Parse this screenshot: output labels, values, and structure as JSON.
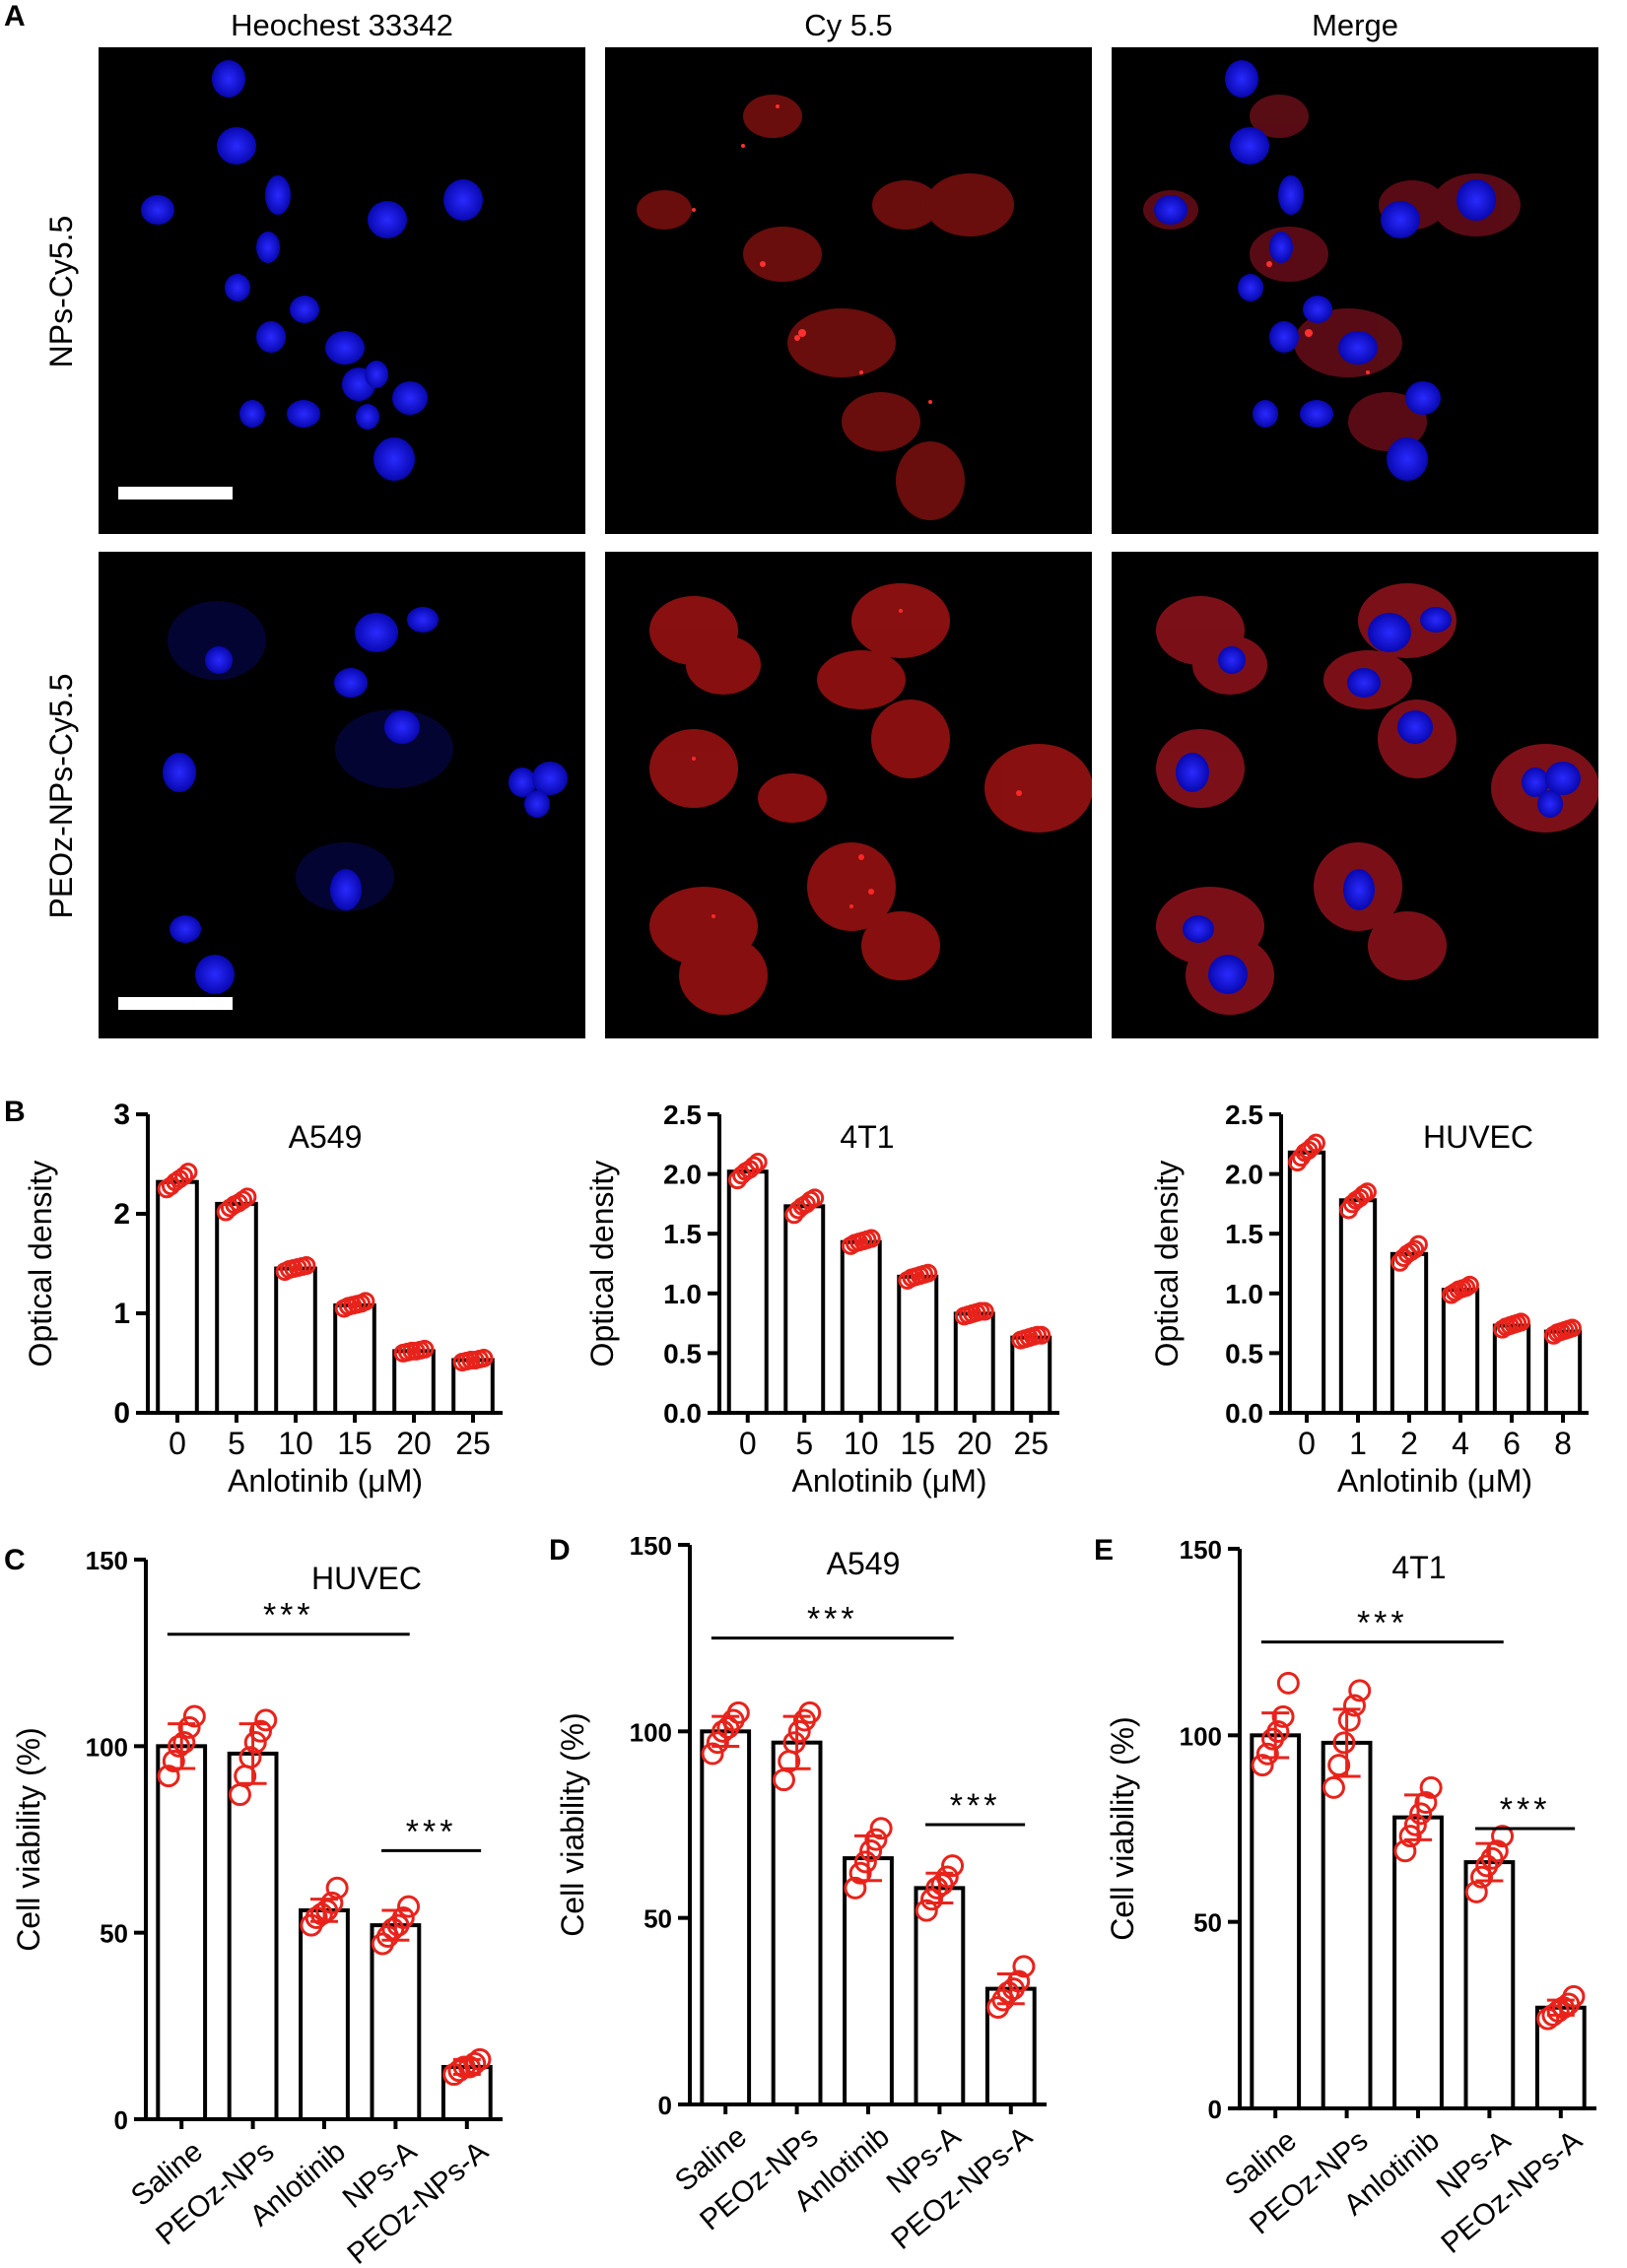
{
  "panels": {
    "A": "A",
    "B": "B",
    "C": "C",
    "D": "D",
    "E": "E"
  },
  "micrographs": {
    "columns": [
      "Heochest 33342",
      "Cy 5.5",
      "Merge"
    ],
    "rows": [
      "NPs-Cy5.5",
      "PEOz-NPs-Cy5.5"
    ],
    "colors": {
      "nucleus": "#1a1aff",
      "cy55": "#d21c1c",
      "background": "#000000",
      "scale_bar": "#ffffff"
    }
  },
  "chart_data": [
    {
      "id": "B1",
      "type": "bar",
      "title": "A549",
      "xlabel": "Anlotinib (μM)",
      "ylabel": "Optical density",
      "categories": [
        "0",
        "5",
        "10",
        "15",
        "20",
        "25"
      ],
      "values": [
        2.32,
        2.1,
        1.45,
        1.08,
        0.62,
        0.53
      ],
      "ylim": [
        0,
        3
      ],
      "yticks": [
        "0",
        "1",
        "2",
        "3"
      ],
      "ytick_values": [
        0,
        1,
        2,
        3
      ],
      "points": [
        [
          2.25,
          2.28,
          2.32,
          2.35,
          2.38,
          2.42
        ],
        [
          2.02,
          2.06,
          2.09,
          2.11,
          2.14,
          2.17
        ],
        [
          1.42,
          1.44,
          1.45,
          1.46,
          1.47,
          1.48
        ],
        [
          1.05,
          1.07,
          1.08,
          1.09,
          1.1,
          1.12
        ],
        [
          0.6,
          0.61,
          0.62,
          0.62,
          0.63,
          0.64
        ],
        [
          0.51,
          0.52,
          0.53,
          0.53,
          0.54,
          0.55
        ]
      ]
    },
    {
      "id": "B2",
      "type": "bar",
      "title": "4T1",
      "xlabel": "Anlotinib (μM)",
      "ylabel": "Optical density",
      "categories": [
        "0",
        "5",
        "10",
        "15",
        "20",
        "25"
      ],
      "values": [
        2.02,
        1.73,
        1.43,
        1.14,
        0.83,
        0.63
      ],
      "ylim": [
        0,
        2.5
      ],
      "yticks": [
        "0.0",
        "0.5",
        "1.0",
        "1.5",
        "2.0",
        "2.5"
      ],
      "ytick_values": [
        0,
        0.5,
        1,
        1.5,
        2,
        2.5
      ],
      "points": [
        [
          1.95,
          1.99,
          2.02,
          2.04,
          2.07,
          2.1
        ],
        [
          1.66,
          1.7,
          1.73,
          1.75,
          1.78,
          1.8
        ],
        [
          1.4,
          1.42,
          1.43,
          1.44,
          1.45,
          1.46
        ],
        [
          1.11,
          1.13,
          1.14,
          1.15,
          1.16,
          1.17
        ],
        [
          0.81,
          0.82,
          0.83,
          0.84,
          0.85,
          0.85
        ],
        [
          0.61,
          0.62,
          0.63,
          0.64,
          0.65,
          0.65
        ]
      ]
    },
    {
      "id": "B3",
      "type": "bar",
      "title": "HUVEC",
      "xlabel": "Anlotinib (μM)",
      "ylabel": "Optical density",
      "categories": [
        "0",
        "1",
        "2",
        "4",
        "6",
        "8"
      ],
      "values": [
        2.18,
        1.78,
        1.33,
        1.03,
        0.73,
        0.68
      ],
      "ylim": [
        0,
        2.5
      ],
      "yticks": [
        "0.0",
        "0.5",
        "1.0",
        "1.5",
        "2.0",
        "2.5"
      ],
      "ytick_values": [
        0,
        0.5,
        1,
        1.5,
        2,
        2.5
      ],
      "points": [
        [
          2.1,
          2.14,
          2.18,
          2.2,
          2.23,
          2.26
        ],
        [
          1.7,
          1.75,
          1.78,
          1.8,
          1.83,
          1.85
        ],
        [
          1.26,
          1.3,
          1.33,
          1.35,
          1.37,
          1.41
        ],
        [
          0.99,
          1.01,
          1.03,
          1.04,
          1.05,
          1.07
        ],
        [
          0.7,
          0.72,
          0.73,
          0.74,
          0.75,
          0.76
        ],
        [
          0.65,
          0.67,
          0.68,
          0.69,
          0.7,
          0.71
        ]
      ]
    },
    {
      "id": "C",
      "type": "bar",
      "title": "HUVEC",
      "xlabel": "",
      "ylabel": "Cell viability (%)",
      "categories": [
        "Saline",
        "PEOz-NPs",
        "Anlotinib",
        "NPs-A",
        "PEOz-NPs-A"
      ],
      "values": [
        100,
        98,
        56,
        52,
        14
      ],
      "errors": [
        6,
        8,
        3,
        4,
        2
      ],
      "ylim": [
        0,
        150
      ],
      "yticks": [
        "0",
        "50",
        "100",
        "150"
      ],
      "ytick_values": [
        0,
        50,
        100,
        150
      ],
      "points": [
        [
          92,
          96,
          100,
          101,
          105,
          108
        ],
        [
          87,
          92,
          97,
          101,
          104,
          107
        ],
        [
          52,
          54,
          55,
          56,
          58,
          62
        ],
        [
          47,
          49,
          51,
          52,
          54,
          57
        ],
        [
          12,
          13,
          14,
          14,
          15,
          16
        ]
      ],
      "significance": [
        {
          "from": 0,
          "to": 3,
          "label": "***",
          "level": 130
        },
        {
          "from": 3,
          "to": 4,
          "label": "***",
          "level": 72
        }
      ]
    },
    {
      "id": "D",
      "type": "bar",
      "title": "A549",
      "xlabel": "",
      "ylabel": "Cell viability (%)",
      "categories": [
        "Saline",
        "PEOz-NPs",
        "Anlotinib",
        "NPs-A",
        "PEOz-NPs-A"
      ],
      "values": [
        100,
        97,
        66,
        58,
        31
      ],
      "errors": [
        4,
        7,
        6,
        4,
        4
      ],
      "ylim": [
        0,
        150
      ],
      "yticks": [
        "0",
        "50",
        "100",
        "150"
      ],
      "ytick_values": [
        0,
        50,
        100,
        150
      ],
      "points": [
        [
          94,
          97,
          100,
          101,
          103,
          105
        ],
        [
          87,
          92,
          97,
          100,
          103,
          105
        ],
        [
          58,
          62,
          65,
          68,
          71,
          74
        ],
        [
          52,
          55,
          58,
          59,
          61,
          64
        ],
        [
          26,
          28,
          30,
          31,
          33,
          37
        ]
      ],
      "significance": [
        {
          "from": 0,
          "to": 3,
          "label": "***",
          "level": 125
        },
        {
          "from": 3,
          "to": 4,
          "label": "***",
          "level": 75
        }
      ]
    },
    {
      "id": "E",
      "type": "bar",
      "title": "4T1",
      "xlabel": "",
      "ylabel": "Cell viability (%)",
      "categories": [
        "Saline",
        "PEOz-NPs",
        "Anlotinib",
        "NPs-A",
        "PEOz-NPs-A"
      ],
      "values": [
        100,
        98,
        78,
        66,
        27
      ],
      "errors": [
        6,
        9,
        6,
        5,
        2
      ],
      "ylim": [
        0,
        150
      ],
      "yticks": [
        "0",
        "50",
        "100",
        "150"
      ],
      "ytick_values": [
        0,
        50,
        100,
        150
      ],
      "points": [
        [
          92,
          95,
          99,
          101,
          105,
          114
        ],
        [
          86,
          92,
          98,
          104,
          108,
          112
        ],
        [
          69,
          73,
          76,
          79,
          82,
          86
        ],
        [
          58,
          62,
          65,
          67,
          69,
          73
        ],
        [
          24,
          25,
          26,
          27,
          28,
          30
        ]
      ],
      "significance": [
        {
          "from": 0,
          "to": 3,
          "label": "***",
          "level": 125
        },
        {
          "from": 3,
          "to": 4,
          "label": "***",
          "level": 75
        }
      ]
    }
  ],
  "colors": {
    "points": "#e8231b",
    "bars": "#ffffff",
    "axes": "#000000"
  }
}
